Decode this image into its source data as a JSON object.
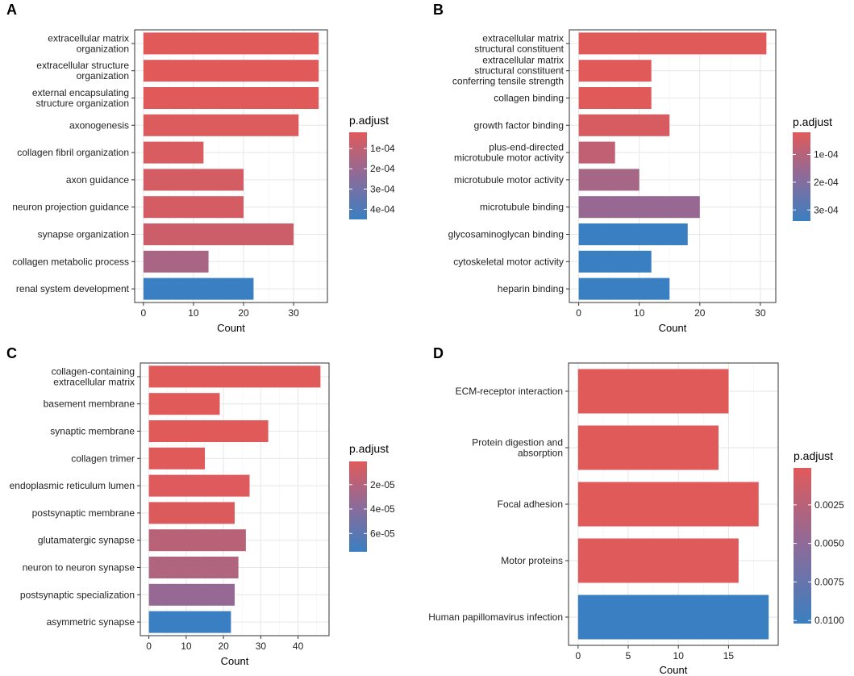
{
  "chart_data": [
    {
      "panel": "A",
      "type": "bar",
      "orientation": "horizontal",
      "categories": [
        [
          "extracellular matrix",
          "organization"
        ],
        [
          "extracellular structure",
          "organization"
        ],
        [
          "external encapsulating",
          "structure organization"
        ],
        [
          "axonogenesis"
        ],
        [
          "collagen fibril organization"
        ],
        [
          "axon guidance"
        ],
        [
          "neuron projection guidance"
        ],
        [
          "synapse organization"
        ],
        [
          "collagen metabolic process"
        ],
        [
          "renal system development"
        ]
      ],
      "values": [
        35,
        35,
        35,
        31,
        12,
        20,
        20,
        30,
        13,
        22
      ],
      "p_adjust": [
        2e-05,
        2e-05,
        2e-05,
        3e-05,
        4e-05,
        5e-05,
        5e-05,
        7e-05,
        0.00016,
        0.00045
      ],
      "xlabel": "Count",
      "xlim": [
        -1.75,
        36.75
      ],
      "xticks": [
        0,
        10,
        20,
        30
      ],
      "legend": {
        "title": "p.adjust",
        "range": [
          2e-05,
          0.00045
        ],
        "ticks": [
          0.0001,
          0.0002,
          0.0003,
          0.0004
        ],
        "tick_labels": [
          "1e-04",
          "2e-04",
          "3e-04",
          "4e-04"
        ]
      }
    },
    {
      "panel": "B",
      "type": "bar",
      "orientation": "horizontal",
      "categories": [
        [
          "extracellular matrix",
          "structural constituent"
        ],
        [
          "extracellular matrix",
          "structural constituent",
          "conferring tensile strength"
        ],
        [
          "collagen binding"
        ],
        [
          "growth factor binding"
        ],
        [
          "plus-end-directed",
          "microtubule motor activity"
        ],
        [
          "microtubule motor activity"
        ],
        [
          "microtubule binding"
        ],
        [
          "glycosaminoglycan binding"
        ],
        [
          "cytoskeletal motor activity"
        ],
        [
          "heparin binding"
        ]
      ],
      "values": [
        31,
        12,
        12,
        15,
        6,
        10,
        20,
        18,
        12,
        15
      ],
      "p_adjust": [
        2e-05,
        2e-05,
        2e-05,
        4e-05,
        8e-05,
        0.00013,
        0.00016,
        0.00034,
        0.00034,
        0.00034
      ],
      "xlabel": "Count",
      "xlim": [
        -1.55,
        32.55
      ],
      "xticks": [
        0,
        10,
        20,
        30
      ],
      "legend": {
        "title": "p.adjust",
        "range": [
          2e-05,
          0.00034
        ],
        "ticks": [
          0.0001,
          0.0002,
          0.0003
        ],
        "tick_labels": [
          "1e-04",
          "2e-04",
          "3e-04"
        ]
      }
    },
    {
      "panel": "C",
      "type": "bar",
      "orientation": "horizontal",
      "categories": [
        [
          "collagen-containing",
          "extracellular matrix"
        ],
        [
          "basement membrane"
        ],
        [
          "synaptic membrane"
        ],
        [
          "collagen trimer"
        ],
        [
          "endoplasmic reticulum lumen"
        ],
        [
          "postsynaptic membrane"
        ],
        [
          "glutamatergic synapse"
        ],
        [
          "neuron to neuron synapse"
        ],
        [
          "postsynaptic specialization"
        ],
        [
          "asymmetric synapse"
        ]
      ],
      "values": [
        46,
        19,
        32,
        15,
        27,
        23,
        26,
        24,
        23,
        22
      ],
      "p_adjust": [
        1e-06,
        1e-06,
        1e-06,
        1e-06,
        2e-06,
        3e-06,
        1.8e-05,
        2.2e-05,
        3.4e-05,
        7.5e-05
      ],
      "xlabel": "Count",
      "xlim": [
        -2.3,
        48.3
      ],
      "xticks": [
        0,
        10,
        20,
        30,
        40
      ],
      "legend": {
        "title": "p.adjust",
        "range": [
          1e-06,
          7.5e-05
        ],
        "ticks": [
          2e-05,
          4e-05,
          6e-05
        ],
        "tick_labels": [
          "2e-05",
          "4e-05",
          "6e-05"
        ]
      }
    },
    {
      "panel": "D",
      "type": "bar",
      "orientation": "horizontal",
      "categories": [
        [
          "ECM-receptor interaction"
        ],
        [
          "Protein digestion and",
          "absorption"
        ],
        [
          "Focal adhesion"
        ],
        [
          "Motor proteins"
        ],
        [
          "Human papillomavirus infection"
        ]
      ],
      "values": [
        15,
        14,
        18,
        16,
        19
      ],
      "p_adjust": [
        0.0001,
        0.0001,
        0.0001,
        0.0002,
        0.0102
      ],
      "xlabel": "Count",
      "xlim": [
        -0.95,
        19.95
      ],
      "xticks": [
        0,
        5,
        10,
        15
      ],
      "legend": {
        "title": "p.adjust",
        "range": [
          0.0001,
          0.0102
        ],
        "ticks": [
          0.0025,
          0.005,
          0.0075,
          0.01
        ],
        "tick_labels": [
          "0.0025",
          "0.0050",
          "0.0075",
          "0.0100"
        ]
      }
    }
  ],
  "colors": {
    "low": "#e05a5a",
    "mid": "#8c6b9a",
    "high": "#3a7fc1"
  }
}
